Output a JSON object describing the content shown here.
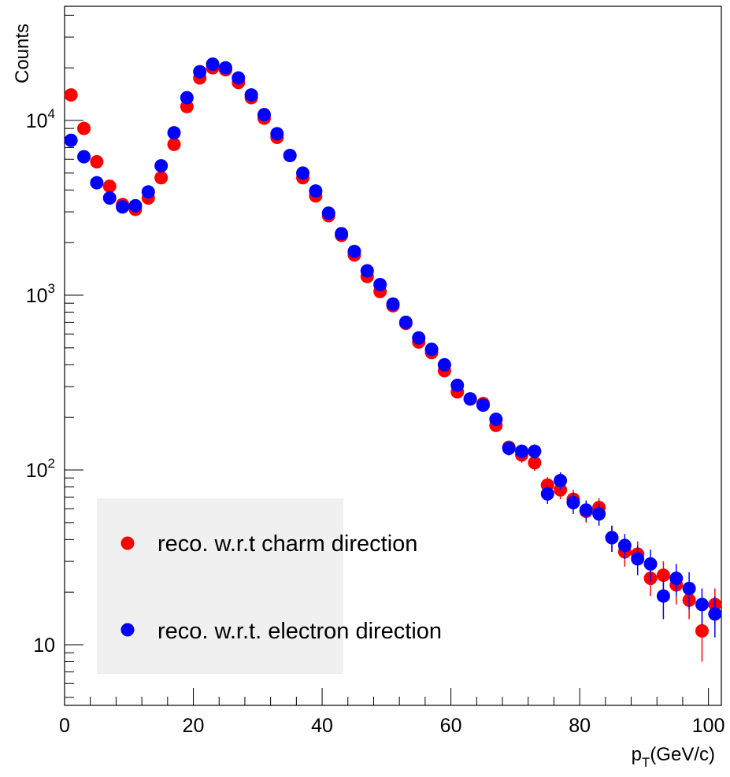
{
  "chart_data": {
    "type": "scatter",
    "x_axis": {
      "label": "p",
      "label_subscript": "T",
      "label_suffix": "(GeV/c)",
      "range": [
        0,
        102
      ],
      "ticks": [
        0,
        20,
        40,
        60,
        80,
        100
      ],
      "tick_labels": [
        "0",
        "20",
        "40",
        "60",
        "80",
        "100"
      ]
    },
    "y_axis": {
      "label": "Counts",
      "scale": "log",
      "range": [
        4.5,
        45000
      ],
      "ticks": [
        10,
        100,
        1000,
        10000
      ],
      "tick_labels": [
        {
          "base": "10",
          "exp": ""
        },
        {
          "base": "10",
          "exp": "2"
        },
        {
          "base": "10",
          "exp": "3"
        },
        {
          "base": "10",
          "exp": "4"
        }
      ]
    },
    "grid": false,
    "legend": {
      "placement": "bottom-left",
      "background": "#f0f0f0"
    },
    "series": [
      {
        "name": "reco. w.r.t charm direction",
        "color": "#ff0000",
        "x": [
          1,
          3,
          5,
          7,
          9,
          11,
          13,
          15,
          17,
          19,
          21,
          23,
          25,
          27,
          29,
          31,
          33,
          35,
          37,
          39,
          41,
          43,
          45,
          47,
          49,
          51,
          53,
          55,
          57,
          59,
          61,
          63,
          65,
          67,
          69,
          71,
          73,
          75,
          77,
          79,
          81,
          83,
          85,
          87,
          89,
          91,
          93,
          95,
          97,
          99,
          101
        ],
        "y": [
          14000,
          9000,
          5800,
          4200,
          3300,
          3100,
          3600,
          4700,
          7300,
          12000,
          17500,
          20000,
          19500,
          16500,
          13500,
          10300,
          8000,
          6300,
          4700,
          3700,
          2850,
          2200,
          1700,
          1280,
          1050,
          870,
          690,
          540,
          470,
          370,
          280,
          255,
          240,
          180,
          135,
          122,
          110,
          82,
          77,
          68,
          58,
          61,
          41,
          34,
          33,
          24,
          25,
          22,
          18,
          12,
          17
        ],
        "yerr": [
          130,
          100,
          80,
          70,
          60,
          60,
          65,
          70,
          90,
          110,
          130,
          145,
          145,
          130,
          120,
          105,
          90,
          80,
          70,
          60,
          55,
          47,
          42,
          36,
          33,
          30,
          27,
          24,
          22,
          20,
          17,
          16,
          16,
          14,
          12,
          12,
          11,
          9,
          9,
          9,
          8,
          8,
          7,
          6,
          6,
          5,
          5,
          5,
          4,
          4,
          4
        ]
      },
      {
        "name": "reco. w.r.t. electron direction",
        "color": "#0000ff",
        "x": [
          1,
          3,
          5,
          7,
          9,
          11,
          13,
          15,
          17,
          19,
          21,
          23,
          25,
          27,
          29,
          31,
          33,
          35,
          37,
          39,
          41,
          43,
          45,
          47,
          49,
          51,
          53,
          55,
          57,
          59,
          61,
          63,
          65,
          67,
          69,
          71,
          73,
          75,
          77,
          79,
          81,
          83,
          85,
          87,
          89,
          91,
          93,
          95,
          97,
          99,
          101
        ],
        "y": [
          7700,
          6200,
          4400,
          3600,
          3200,
          3250,
          3900,
          5500,
          8500,
          13500,
          19000,
          21000,
          20000,
          17500,
          14000,
          10800,
          8400,
          6300,
          5000,
          3950,
          2950,
          2250,
          1780,
          1380,
          1150,
          890,
          700,
          570,
          490,
          400,
          305,
          255,
          235,
          195,
          133,
          128,
          128,
          73,
          87,
          65,
          59,
          56,
          41,
          37,
          31,
          29,
          19,
          24,
          21,
          17,
          15
        ],
        "yerr": [
          95,
          85,
          70,
          65,
          60,
          60,
          65,
          75,
          95,
          120,
          140,
          150,
          145,
          135,
          120,
          105,
          95,
          80,
          70,
          65,
          55,
          48,
          43,
          38,
          34,
          30,
          27,
          24,
          23,
          20,
          18,
          16,
          16,
          14,
          12,
          12,
          12,
          9,
          10,
          9,
          8,
          8,
          7,
          6,
          6,
          6,
          5,
          5,
          5,
          4,
          4
        ]
      }
    ]
  }
}
